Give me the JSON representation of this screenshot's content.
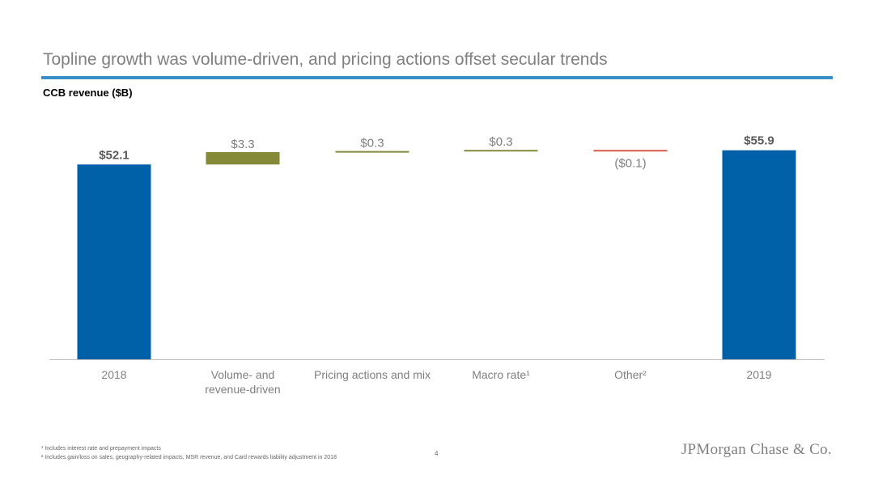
{
  "header": {
    "title": "Topline growth was volume-driven, and pricing actions offset secular trends",
    "subtitle": "CCB revenue ($B)"
  },
  "chart_data": {
    "type": "bar",
    "subtype": "waterfall",
    "categories": [
      [
        "2018"
      ],
      [
        "Volume- and",
        "revenue-driven"
      ],
      [
        "Pricing actions and mix"
      ],
      [
        "Macro rate¹"
      ],
      [
        "Other²"
      ],
      [
        "2019"
      ]
    ],
    "values": [
      52.1,
      3.3,
      0.3,
      0.3,
      -0.1,
      55.9
    ],
    "data_labels": [
      "$52.1",
      "$3.3",
      "$0.3",
      "$0.3",
      "($0.1)",
      "$55.9"
    ],
    "kinds": [
      "total",
      "increase",
      "increase",
      "increase",
      "decrease",
      "total"
    ],
    "ylim": [
      0,
      60
    ],
    "grid": false,
    "legend": "none",
    "colors": {
      "total": "#0061a8",
      "increase": "#848a38",
      "decrease": "#d9594c",
      "axis": "#bfbfbf",
      "category_text": "#7f7f7f",
      "increase_label": "#7f7f7f",
      "total_label": "#595959"
    }
  },
  "footer": {
    "footnote_1": "¹ Includes interest rate and prepayment impacts",
    "footnote_2": "² Includes gain/loss on sales, geography-related impacts, MSR revenue, and Card rewards liability adjustment in 2018",
    "page_number": "4",
    "logo_text": "JPMorgan Chase & Co."
  }
}
